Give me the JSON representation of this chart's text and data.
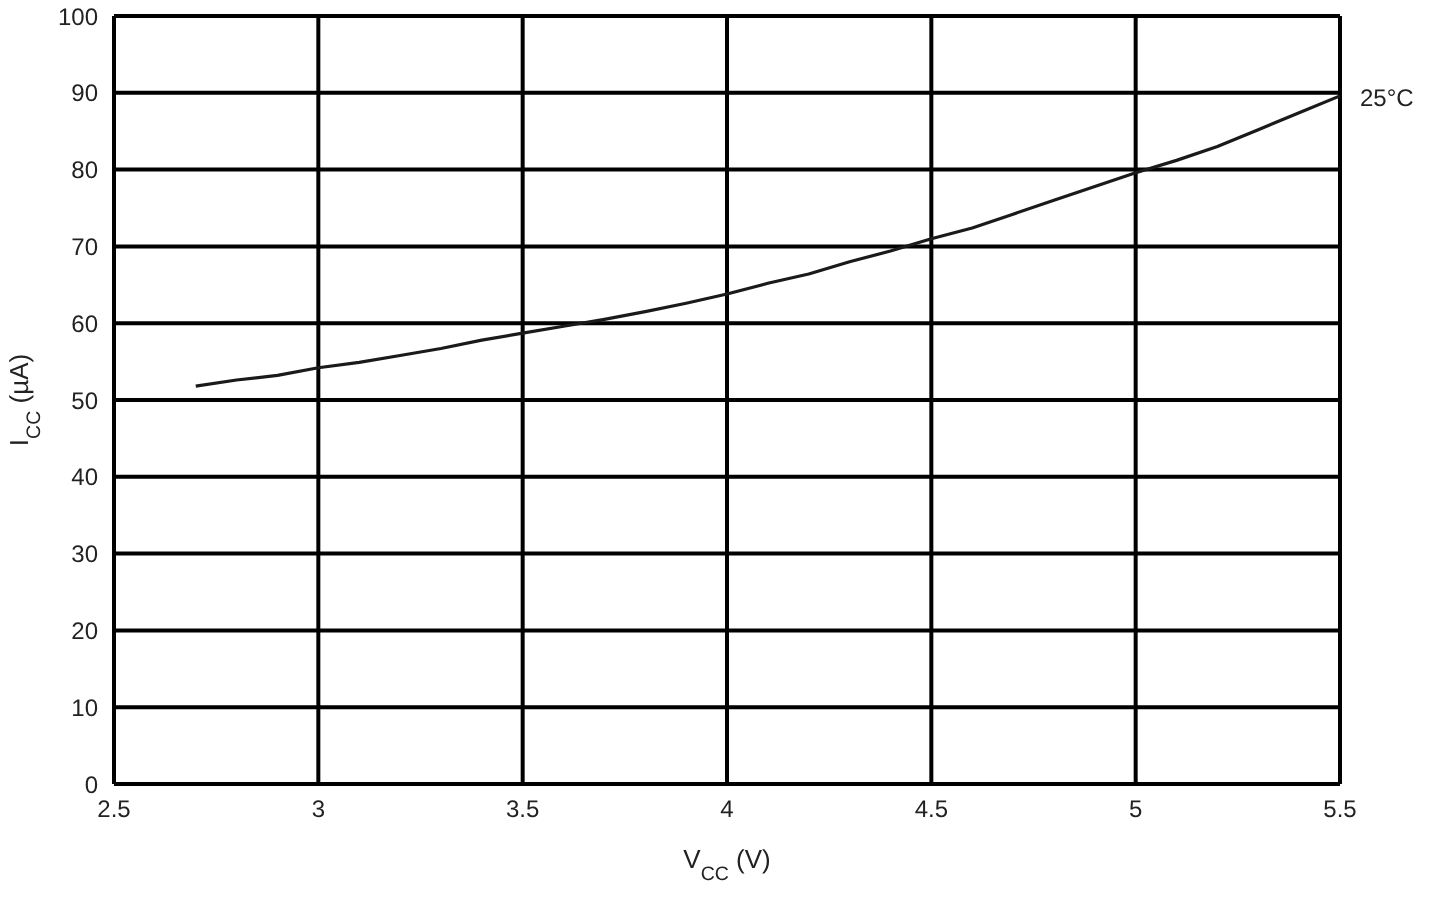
{
  "chart_data": {
    "type": "line",
    "xlabel": "V$_{CC}$ (V)",
    "ylabel": "I$_{CC}$ (µA)",
    "xlim": [
      2.5,
      5.5
    ],
    "xticks": [
      2.5,
      3,
      3.5,
      4,
      4.5,
      5,
      5.5
    ],
    "ylim": [
      0,
      100
    ],
    "yticks": [
      0,
      10,
      20,
      30,
      40,
      50,
      60,
      70,
      80,
      90,
      100
    ],
    "grid": true,
    "marker": "none",
    "line_style": "solid",
    "series": [
      {
        "name": "25°C",
        "color": "#1a1a1a",
        "x": [
          2.7,
          2.8,
          2.9,
          3.0,
          3.1,
          3.2,
          3.3,
          3.4,
          3.5,
          3.6,
          3.7,
          3.8,
          3.9,
          4.0,
          4.1,
          4.2,
          4.3,
          4.4,
          4.5,
          4.6,
          4.7,
          4.8,
          4.9,
          5.0,
          5.1,
          5.2,
          5.3,
          5.4,
          5.5
        ],
        "values": [
          51.8,
          52.6,
          53.2,
          54.2,
          54.9,
          55.8,
          56.7,
          57.8,
          58.7,
          59.6,
          60.5,
          61.5,
          62.6,
          63.8,
          65.2,
          66.4,
          68.0,
          69.4,
          71.0,
          72.4,
          74.2,
          76.0,
          77.8,
          79.6,
          81.2,
          83.0,
          85.2,
          87.4,
          89.6
        ]
      }
    ]
  }
}
